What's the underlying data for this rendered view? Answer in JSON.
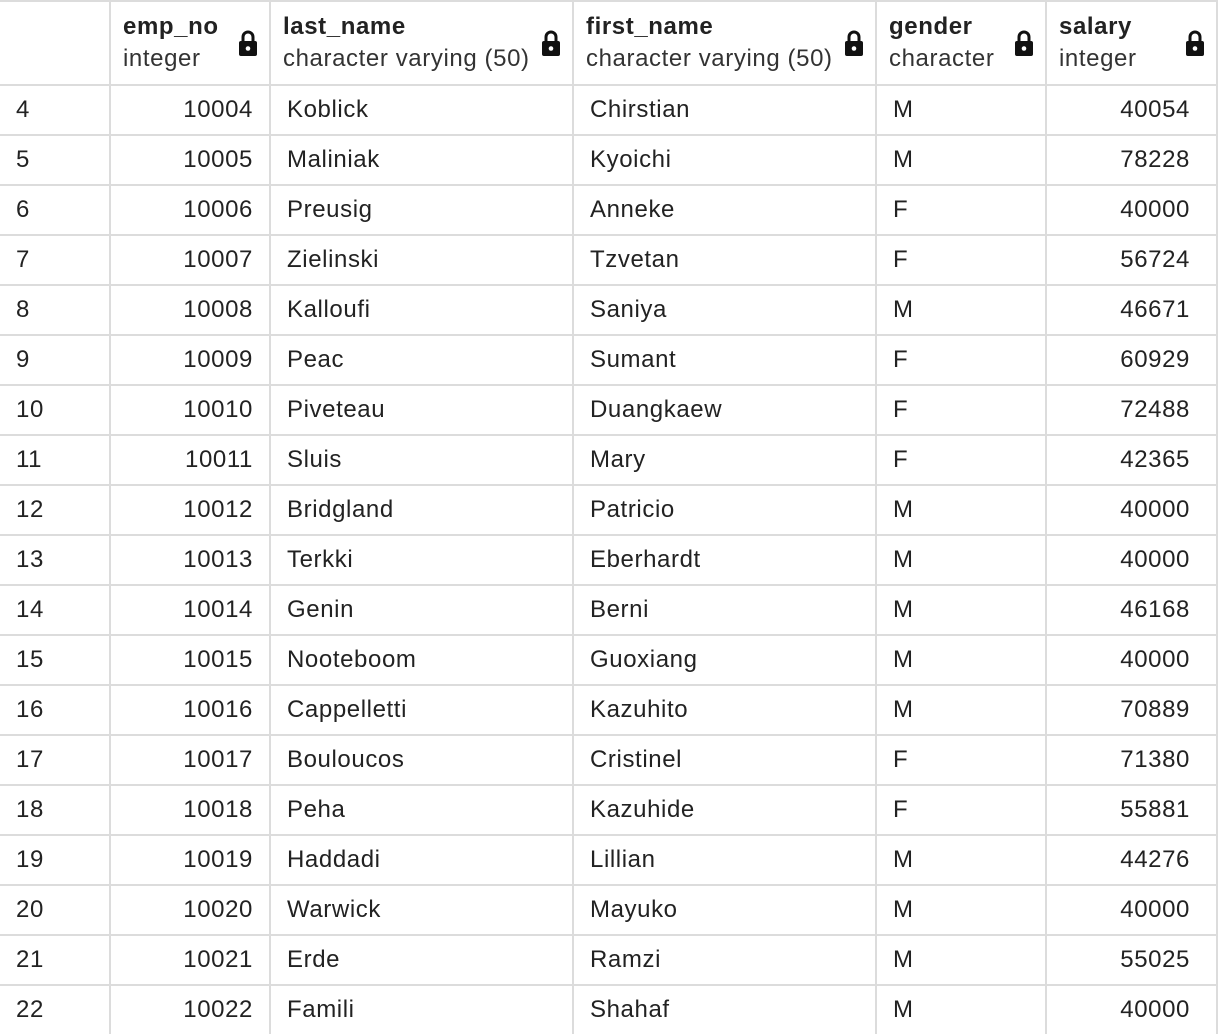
{
  "columns": [
    {
      "name": "emp_no",
      "type": "integer"
    },
    {
      "name": "last_name",
      "type": "character varying (50)"
    },
    {
      "name": "first_name",
      "type": "character varying (50)"
    },
    {
      "name": "gender",
      "type": "character"
    },
    {
      "name": "salary",
      "type": "integer"
    }
  ],
  "header_icon": "lock-icon",
  "rows": [
    {
      "row": "4",
      "emp_no": "10004",
      "last_name": "Koblick",
      "first_name": "Chirstian",
      "gender": "M",
      "salary": "40054"
    },
    {
      "row": "5",
      "emp_no": "10005",
      "last_name": "Maliniak",
      "first_name": "Kyoichi",
      "gender": "M",
      "salary": "78228"
    },
    {
      "row": "6",
      "emp_no": "10006",
      "last_name": "Preusig",
      "first_name": "Anneke",
      "gender": "F",
      "salary": "40000"
    },
    {
      "row": "7",
      "emp_no": "10007",
      "last_name": "Zielinski",
      "first_name": "Tzvetan",
      "gender": "F",
      "salary": "56724"
    },
    {
      "row": "8",
      "emp_no": "10008",
      "last_name": "Kalloufi",
      "first_name": "Saniya",
      "gender": "M",
      "salary": "46671"
    },
    {
      "row": "9",
      "emp_no": "10009",
      "last_name": "Peac",
      "first_name": "Sumant",
      "gender": "F",
      "salary": "60929"
    },
    {
      "row": "10",
      "emp_no": "10010",
      "last_name": "Piveteau",
      "first_name": "Duangkaew",
      "gender": "F",
      "salary": "72488"
    },
    {
      "row": "11",
      "emp_no": "10011",
      "last_name": "Sluis",
      "first_name": "Mary",
      "gender": "F",
      "salary": "42365"
    },
    {
      "row": "12",
      "emp_no": "10012",
      "last_name": "Bridgland",
      "first_name": "Patricio",
      "gender": "M",
      "salary": "40000"
    },
    {
      "row": "13",
      "emp_no": "10013",
      "last_name": "Terkki",
      "first_name": "Eberhardt",
      "gender": "M",
      "salary": "40000"
    },
    {
      "row": "14",
      "emp_no": "10014",
      "last_name": "Genin",
      "first_name": "Berni",
      "gender": "M",
      "salary": "46168"
    },
    {
      "row": "15",
      "emp_no": "10015",
      "last_name": "Nooteboom",
      "first_name": "Guoxiang",
      "gender": "M",
      "salary": "40000"
    },
    {
      "row": "16",
      "emp_no": "10016",
      "last_name": "Cappelletti",
      "first_name": "Kazuhito",
      "gender": "M",
      "salary": "70889"
    },
    {
      "row": "17",
      "emp_no": "10017",
      "last_name": "Bouloucos",
      "first_name": "Cristinel",
      "gender": "F",
      "salary": "71380"
    },
    {
      "row": "18",
      "emp_no": "10018",
      "last_name": "Peha",
      "first_name": "Kazuhide",
      "gender": "F",
      "salary": "55881"
    },
    {
      "row": "19",
      "emp_no": "10019",
      "last_name": "Haddadi",
      "first_name": "Lillian",
      "gender": "M",
      "salary": "44276"
    },
    {
      "row": "20",
      "emp_no": "10020",
      "last_name": "Warwick",
      "first_name": "Mayuko",
      "gender": "M",
      "salary": "40000"
    },
    {
      "row": "21",
      "emp_no": "10021",
      "last_name": "Erde",
      "first_name": "Ramzi",
      "gender": "M",
      "salary": "55025"
    },
    {
      "row": "22",
      "emp_no": "10022",
      "last_name": "Famili",
      "first_name": "Shahaf",
      "gender": "M",
      "salary": "40000"
    }
  ]
}
